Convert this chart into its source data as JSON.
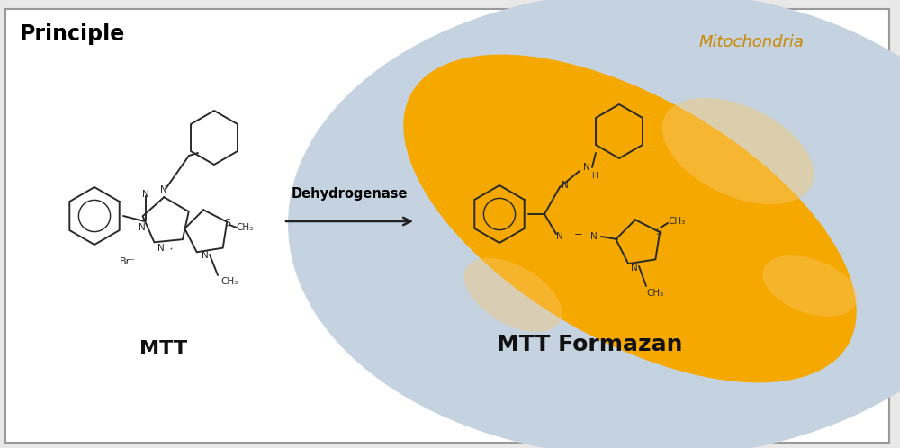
{
  "title": "Principle",
  "title_fontsize": 17,
  "title_fontweight": "bold",
  "bg_color": "#e8e8e8",
  "left_bg": "#ffffff",
  "cell_color": "#c5d3e0",
  "cell_alpha": 1.0,
  "mito_color": "#f5a800",
  "mito_alpha": 1.0,
  "mito_highlight_color": "#f8c870",
  "arrow_color": "#222222",
  "dehydrogenase_label": "Dehydrogenase",
  "mtt_label": "MTT",
  "formazan_label": "MTT Formazan",
  "mitochondria_label": "Mitochondria",
  "mtt_label_color": "#111111",
  "formazan_label_color": "#111111",
  "mito_label_color": "#cc8800",
  "border_color": "#999999",
  "label_fontsize": 15,
  "mito_label_fontsize": 13,
  "struct_color": "#2a2a2a",
  "struct_lw": 1.4
}
